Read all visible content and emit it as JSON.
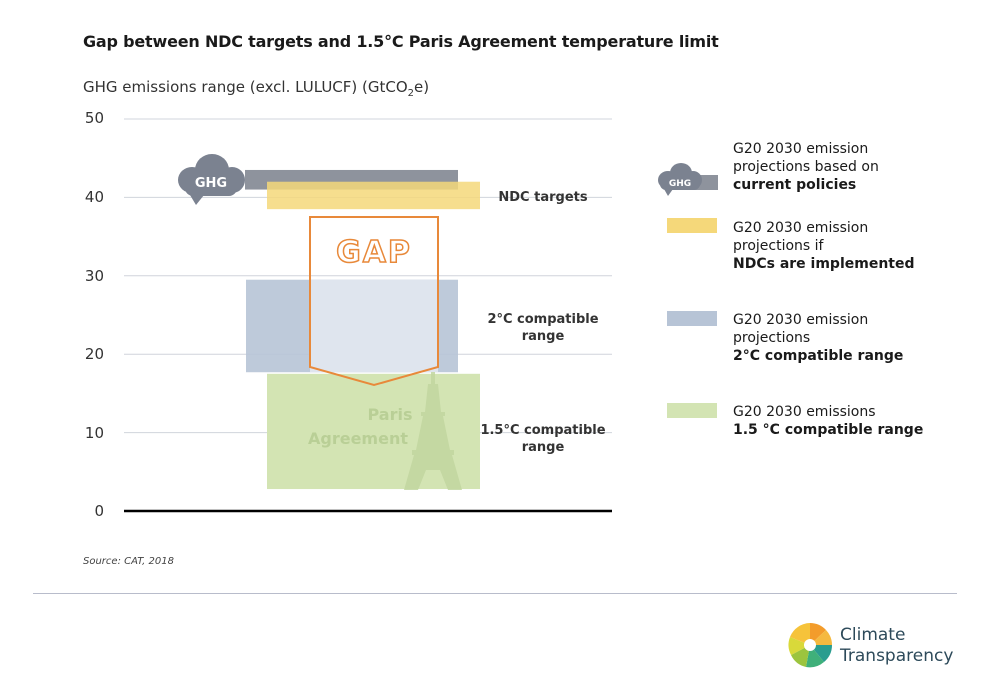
{
  "chart_data": {
    "type": "bar",
    "title": "Gap between NDC targets and 1.5°C Paris Agreement temperature limit",
    "ylabel_main": "GHG emissions range (excl. LULUCF) (GtCO",
    "ylabel_sub": "2",
    "ylabel_tail": "e)",
    "ylim": [
      0,
      50
    ],
    "yticks": [
      "0",
      "10",
      "20",
      "30",
      "40",
      "50"
    ],
    "grid": true,
    "series": [
      {
        "name": "G20 2030 emission projections based on current policies",
        "low": 41,
        "high": 43.5,
        "color": "#8e939d"
      },
      {
        "name": "G20 2030 emission projections if NDCs are implemented",
        "low": 38.5,
        "high": 42,
        "color": "#f5d87a"
      },
      {
        "name": "G20 2030 emission projections 2°C compatible range",
        "low": 17.7,
        "high": 29.5,
        "color": "#b7c4d6"
      },
      {
        "name": "G20 2030 emissions 1.5 °C compatible range",
        "low": 2.8,
        "high": 17.5,
        "color": "#d3e4b3"
      }
    ],
    "range_labels": {
      "ndc": "NDC targets",
      "two_c_line1": "2°C compatible",
      "two_c_line2": "range",
      "one_five_line1": "1.5°C compatible",
      "one_five_line2": "range"
    },
    "annotations": {
      "gap": "GAP",
      "ghg_cloud": "GHG",
      "paris_line1": "Paris",
      "paris_line2": "Agreement"
    }
  },
  "legend": [
    {
      "line1": "G20 2030 emission",
      "line2": "projections based on",
      "line3": "current policies",
      "bold_line": 3
    },
    {
      "line1": "G20 2030 emission",
      "line2": "projections if",
      "line3": "NDCs are implemented",
      "bold_line": 3
    },
    {
      "line1": "G20 2030 emission",
      "line2": "projections",
      "line3": "2°C compatible range",
      "bold_line": 3
    },
    {
      "line1": "G20 2030 emissions",
      "line2": "1.5 °C compatible range",
      "bold_line": 2
    }
  ],
  "source": "Source: CAT, 2018",
  "logo": {
    "line1": "Climate",
    "line2": "Transparency"
  }
}
